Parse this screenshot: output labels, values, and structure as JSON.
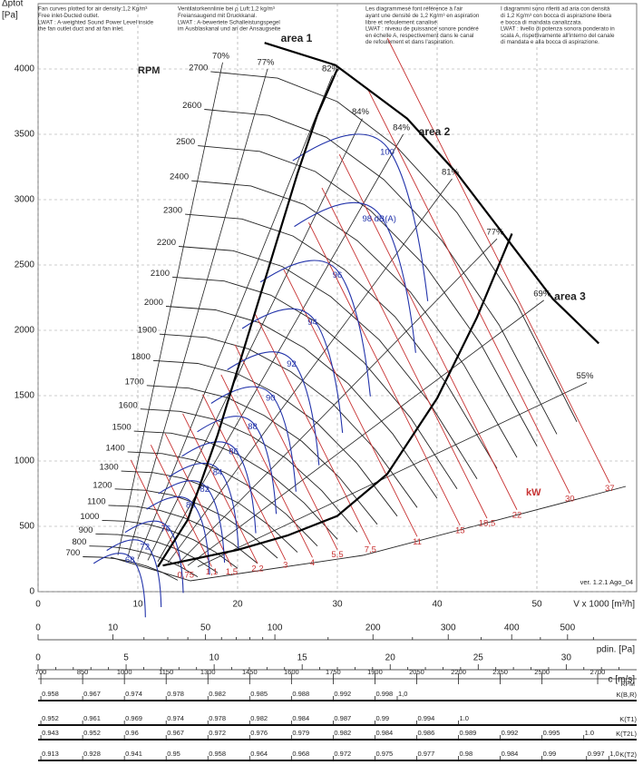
{
  "notes": [
    [
      "Fan curves plotted for air density:1,2 Kg/m³",
      "Free inlet-Ducted outlet.",
      "LWAT : A-weighted Sound Power Level inside",
      "the fan outlet duct and at fan inlet."
    ],
    [
      "Ventilatorkennlinie bei ρ Luft:1,2 kg/m³",
      "Freiansaugend mit Druckkanal.",
      "LWAT : A-bewertete Schalleistungspegel",
      "im Ausblaskanal und an der Ansaugseite"
    ],
    [
      "Les diagrammesé font référence à l'air",
      "ayant une densité de 1,2 Kg/m³ en aspiration",
      "libre et refoulement canalisé.",
      "LWAT : niveau de puissance sonore pondéré",
      "en échelle A, respectivement dans le canal",
      "de refoulement et dans l'aspiration."
    ],
    [
      "I diagrammi sono riferiti ad aria con densità",
      "di 1,2 Kg/m³ con bocca di aspirazione libera",
      "e bocca di mandata canalizzata.",
      "LWAT : livello di potenza sonora ponderato in",
      "scala A, rispettivamente all'interno del canale",
      "di mandata e alla bocca di aspirazione."
    ]
  ],
  "chart_data": {
    "type": "fan-curve",
    "ylabel": "Δptot",
    "yunit": "[Pa]",
    "xlabel": "V x 1000 [m³/h]",
    "xlim": [
      0,
      60
    ],
    "xticks": [
      0,
      10,
      20,
      30,
      40,
      50
    ],
    "ylim": [
      0,
      4500
    ],
    "yticks": [
      0,
      500,
      1000,
      1500,
      2000,
      2500,
      3000,
      3500,
      4000
    ],
    "grid": true,
    "rpm_title": "RPM",
    "rpm_curves": {
      "rpm": [
        700,
        800,
        900,
        1000,
        1100,
        1200,
        1300,
        1400,
        1500,
        1600,
        1700,
        1800,
        1900,
        2000,
        2100,
        2200,
        2300,
        2400,
        2500,
        2600,
        2700
      ],
      "reference": {
        "x": [
          17.3,
          24,
          30,
          36,
          42,
          48,
          54
        ],
        "y": [
          3980,
          3930,
          3750,
          3400,
          2900,
          2200,
          1300
        ]
      }
    },
    "efficiency": [
      {
        "value": 70,
        "label": "70%",
        "x": [
          8,
          18.5
        ],
        "y": [
          280,
          4050
        ]
      },
      {
        "value": 77,
        "label": "77%",
        "x": [
          9,
          23
        ],
        "y": [
          270,
          4000
        ]
      },
      {
        "value": 82,
        "label": "82%",
        "x": [
          10,
          29.5
        ],
        "y": [
          250,
          3950
        ]
      },
      {
        "value": 84,
        "label": "84%",
        "x": [
          11,
          32.5
        ],
        "y": [
          240,
          3620
        ]
      },
      {
        "value": 84,
        "label": "84%",
        "x": [
          12,
          36.6
        ],
        "y": [
          230,
          3500
        ]
      },
      {
        "value": 81,
        "label": "81%",
        "x": [
          13,
          41.5
        ],
        "y": [
          220,
          3160
        ]
      },
      {
        "value": 77,
        "label": "77%",
        "x": [
          14,
          46
        ],
        "y": [
          210,
          2700
        ]
      },
      {
        "value": 69,
        "label": "69%",
        "x": [
          15,
          50.7
        ],
        "y": [
          200,
          2230
        ]
      },
      {
        "value": 55,
        "label": "55%",
        "x": [
          16,
          55
        ],
        "y": [
          190,
          1600
        ]
      }
    ],
    "sound": {
      "values": [
        68,
        72,
        76,
        80,
        82,
        84,
        86,
        88,
        90,
        92,
        94,
        96,
        98,
        100
      ],
      "value_labels": [
        "68",
        "72",
        "76",
        "80",
        "82",
        "84",
        "86",
        "88",
        "90",
        "92",
        "94",
        "96",
        "98 dB(A)",
        "100"
      ],
      "x": [
        9.2,
        10.7,
        12.8,
        15.3,
        16.7,
        18,
        19.6,
        21.5,
        23.3,
        25.4,
        27.5,
        30,
        34.2,
        35
      ],
      "y": [
        240,
        340,
        480,
        660,
        780,
        910,
        1070,
        1260,
        1480,
        1740,
        2060,
        2420,
        2850,
        3360
      ]
    },
    "power": {
      "title": "kW",
      "values": [
        0.75,
        1.1,
        1.5,
        2.2,
        3,
        4,
        5.5,
        7.5,
        11,
        15,
        18.5,
        22,
        30,
        37
      ],
      "value_labels": [
        "0,75",
        "1,1",
        "1,5",
        "2,2",
        "3",
        "4",
        "5,5",
        "7,5",
        "11",
        "15",
        "18,5",
        "22",
        "30",
        "37"
      ],
      "x": [
        14.8,
        17.4,
        19.4,
        22,
        24.8,
        27.5,
        30,
        33.3,
        38,
        42.3,
        45,
        48,
        53.3,
        57.3
      ],
      "y": [
        125,
        150,
        150,
        175,
        200,
        220,
        280,
        320,
        380,
        465,
        520,
        585,
        710,
        790
      ]
    },
    "areas": [
      {
        "name": "area 1",
        "x": [
          12,
          15,
          18,
          20,
          22,
          24,
          26,
          28,
          30
        ],
        "y": [
          190,
          550,
          1200,
          1700,
          2200,
          2700,
          3200,
          3650,
          4000
        ]
      },
      {
        "name": "area 2",
        "x": [
          22.7,
          29.8,
          37,
          42,
          46.6,
          51.6,
          56.2
        ],
        "y": [
          4200,
          4030,
          3620,
          3200,
          2740,
          2240,
          1900
        ]
      },
      {
        "name": "area 3",
        "x": [
          12.5,
          20,
          25,
          30,
          35,
          40,
          44,
          47.5
        ],
        "y": [
          200,
          320,
          430,
          580,
          900,
          1480,
          2100,
          2740
        ]
      }
    ],
    "version": "ver. 1.2.1 Ago_04"
  },
  "scales": {
    "pdin": {
      "label": "pdin. [Pa]",
      "scale": "sqrt",
      "lim": [
        0,
        639
      ],
      "ticks": [
        0,
        10,
        50,
        100,
        200,
        300,
        400,
        500
      ],
      "minor_ticks": [
        20,
        30,
        40,
        60,
        70,
        80,
        90,
        150,
        250,
        350,
        450,
        550
      ]
    },
    "c": {
      "label": "c [m/s]",
      "lim": [
        0,
        34
      ],
      "ticks": [
        0,
        5,
        10,
        15,
        20,
        25,
        30
      ],
      "minor_ticks": [
        1,
        2,
        3,
        4,
        6,
        7,
        8,
        9,
        11,
        12,
        13,
        14,
        16,
        17,
        18,
        19,
        21,
        22,
        23,
        24,
        26,
        27,
        28,
        29,
        31,
        32,
        33
      ]
    },
    "rpm": {
      "label": "RPM",
      "lim": [
        690,
        2840
      ],
      "ticks": [
        700,
        850,
        1000,
        1150,
        1300,
        1450,
        1600,
        1750,
        1900,
        2050,
        2200,
        2350,
        2500,
        2700
      ]
    },
    "k_rows": [
      {
        "name": "K(B,R)",
        "rpm": [
          700,
          850,
          1000,
          1150,
          1300,
          1450,
          1600,
          1750,
          1900,
          1980
        ],
        "values": [
          0.958,
          0.967,
          0.974,
          0.978,
          0.982,
          0.985,
          0.988,
          0.992,
          0.998,
          {
            "value": 1,
            "label": "1,0"
          }
        ]
      },
      {
        "name": "K(T1)",
        "rpm": [
          700,
          850,
          1000,
          1150,
          1300,
          1450,
          1600,
          1750,
          1900,
          2050,
          2200
        ],
        "values": [
          0.952,
          0.961,
          0.969,
          0.974,
          0.978,
          0.982,
          0.984,
          0.987,
          0.99,
          0.994,
          {
            "value": 1,
            "label": "1.0"
          }
        ]
      },
      {
        "name": "K(T2L)",
        "rpm": [
          700,
          850,
          1000,
          1150,
          1300,
          1450,
          1600,
          1750,
          1900,
          2050,
          2200,
          2350,
          2500,
          2650
        ],
        "values": [
          0.943,
          0.952,
          0.96,
          0.967,
          0.972,
          0.976,
          0.979,
          0.982,
          0.984,
          0.986,
          0.989,
          0.992,
          0.995,
          {
            "value": 1,
            "label": "1.0"
          }
        ]
      },
      {
        "name": "K(T2)",
        "rpm": [
          700,
          850,
          1000,
          1150,
          1300,
          1450,
          1600,
          1750,
          1900,
          2050,
          2200,
          2350,
          2500,
          2660,
          2740
        ],
        "values": [
          0.913,
          0.928,
          0.941,
          0.95,
          0.958,
          0.964,
          0.968,
          0.972,
          0.975,
          0.977,
          0.98,
          0.984,
          0.99,
          0.997,
          {
            "value": 1,
            "label": "1,0"
          }
        ]
      }
    ]
  }
}
